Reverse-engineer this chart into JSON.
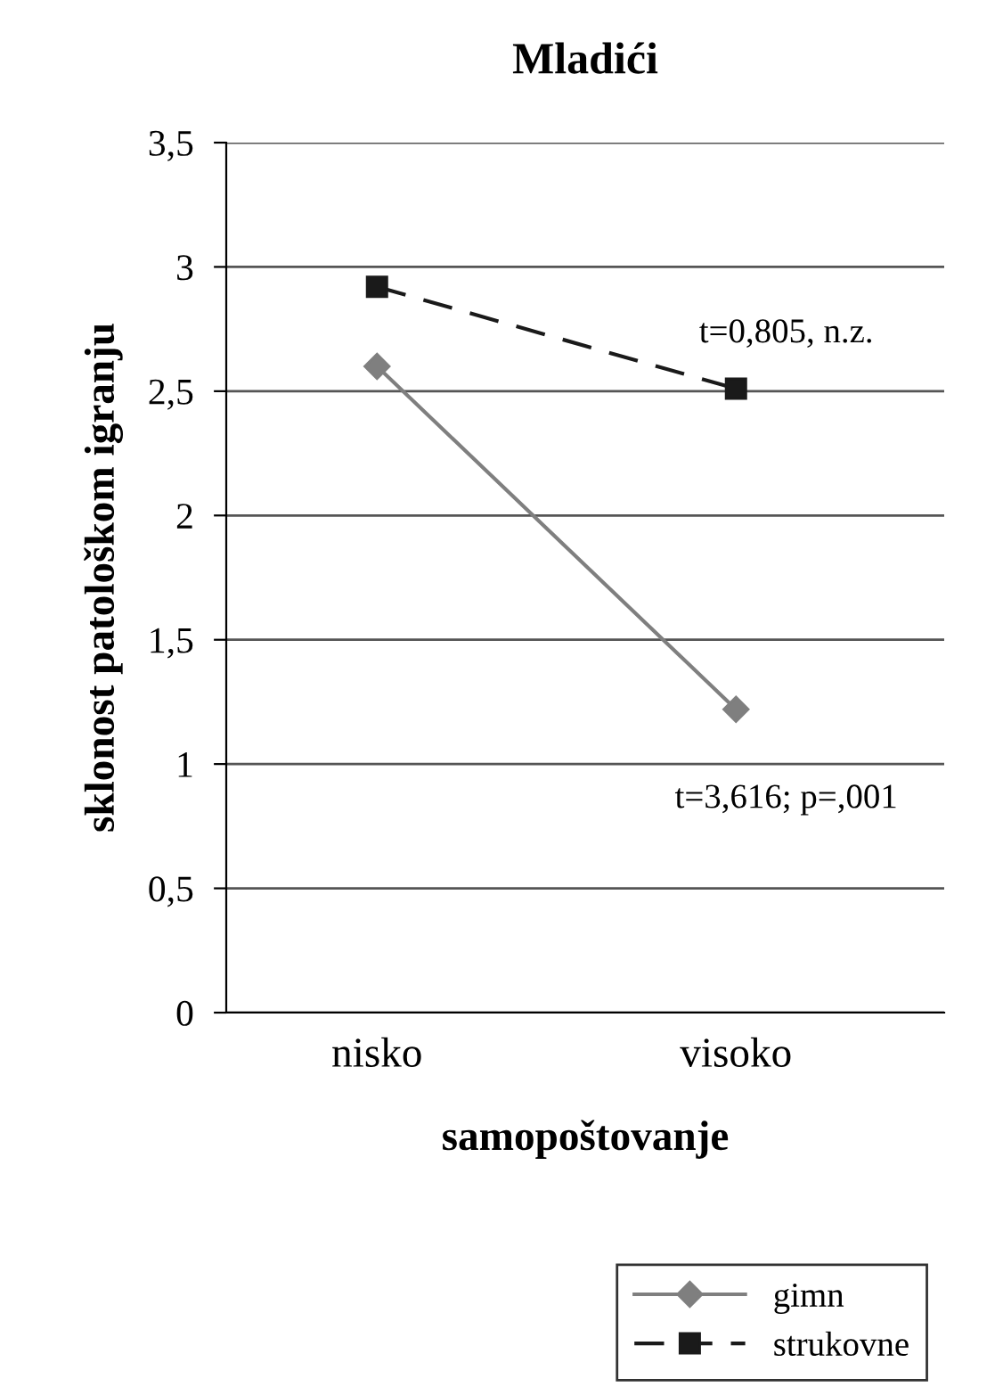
{
  "chart_data": {
    "type": "line",
    "title": "Mladići",
    "xlabel": "samopoštovanje",
    "ylabel": "sklonost patološkom igranju",
    "categories": [
      "nisko",
      "visoko"
    ],
    "series": [
      {
        "name": "gimn",
        "color": "#7f7f7f",
        "values": [
          2.6,
          1.22
        ],
        "marker": "diamond",
        "line_style": "solid"
      },
      {
        "name": "strukovne",
        "color": "#1a1a1a",
        "values": [
          2.92,
          2.51
        ],
        "marker": "square",
        "line_style": "dashed"
      }
    ],
    "annotations": [
      "t=0,805, n.z.",
      "t=3,616; p=,001"
    ],
    "ylim": [
      0,
      3.5
    ],
    "yticks": [
      {
        "value": 0,
        "label": "0"
      },
      {
        "value": 0.5,
        "label": "0,5"
      },
      {
        "value": 1,
        "label": "1"
      },
      {
        "value": 1.5,
        "label": "1,5"
      },
      {
        "value": 2,
        "label": "2"
      },
      {
        "value": 2.5,
        "label": "2,5"
      },
      {
        "value": 3,
        "label": "3"
      },
      {
        "value": 3.5,
        "label": "3,5"
      }
    ],
    "grid": "y",
    "legend": "bottom right"
  }
}
